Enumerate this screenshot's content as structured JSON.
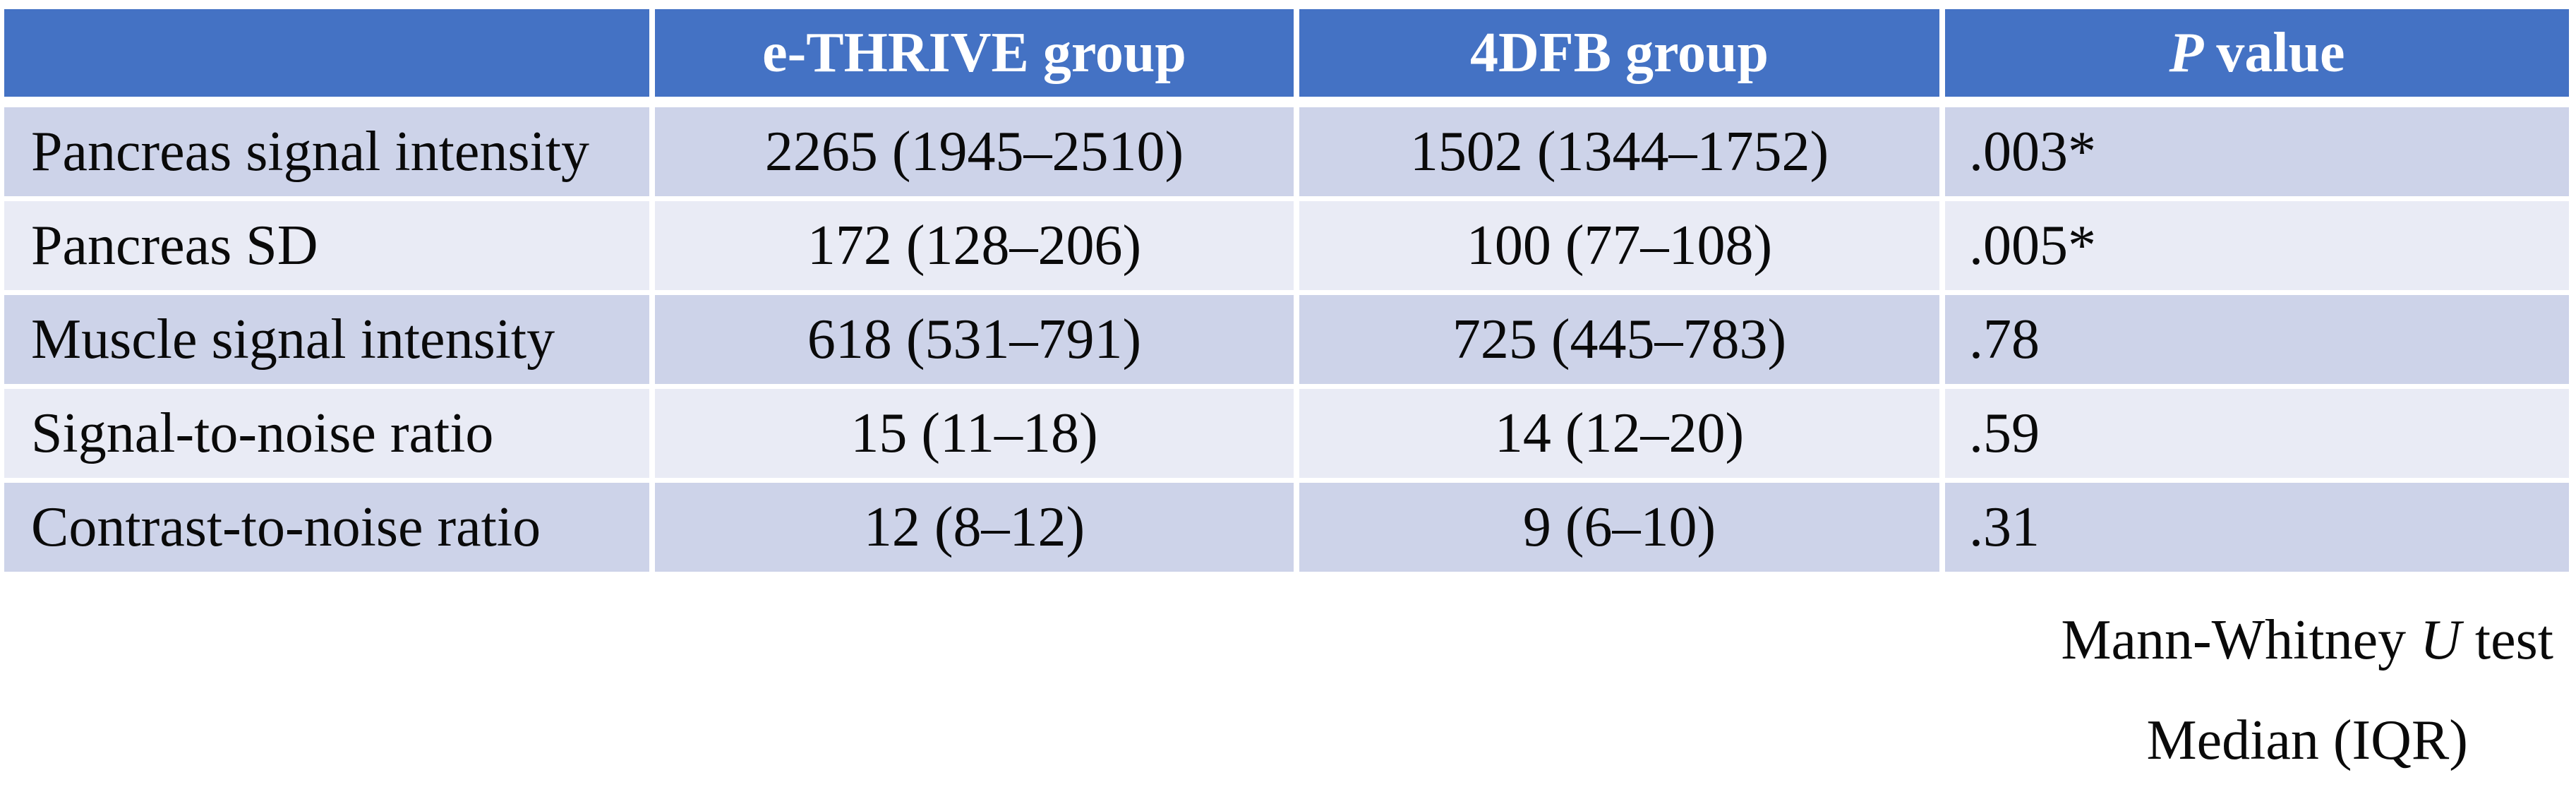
{
  "colors": {
    "header_bg": "#4472C4",
    "header_text": "#FFFFFF",
    "row_odd_bg": "#CDD3E9",
    "row_even_bg": "#E9EBF5",
    "body_text": "#0A0A0A",
    "page_bg": "#FFFFFF"
  },
  "table": {
    "header": {
      "col0": "",
      "col1": "e-THRIVE group",
      "col2": "4DFB group",
      "col3_italic": "P",
      "col3_rest": "value"
    },
    "rows": [
      {
        "label": "Pancreas signal intensity",
        "ethrive": "2265 (1945–2510)",
        "fdfb": "1502 (1344–1752)",
        "p": ".003*"
      },
      {
        "label": "Pancreas SD",
        "ethrive": "172 (128–206)",
        "fdfb": "100 (77–108)",
        "p": ".005*"
      },
      {
        "label": "Muscle signal intensity",
        "ethrive": "618 (531–791)",
        "fdfb": "725 (445–783)",
        "p": ".78"
      },
      {
        "label": "Signal-to-noise ratio",
        "ethrive": "15 (11–18)",
        "fdfb": "14 (12–20)",
        "p": ".59"
      },
      {
        "label": "Contrast-to-noise ratio",
        "ethrive": "12 (8–12)",
        "fdfb": "9 (6–10)",
        "p": ".31"
      }
    ]
  },
  "footnotes": {
    "line1_prefix": "Mann-Whitney ",
    "line1_italic": "U",
    "line1_suffix": " test",
    "line2": "Median (IQR)"
  }
}
